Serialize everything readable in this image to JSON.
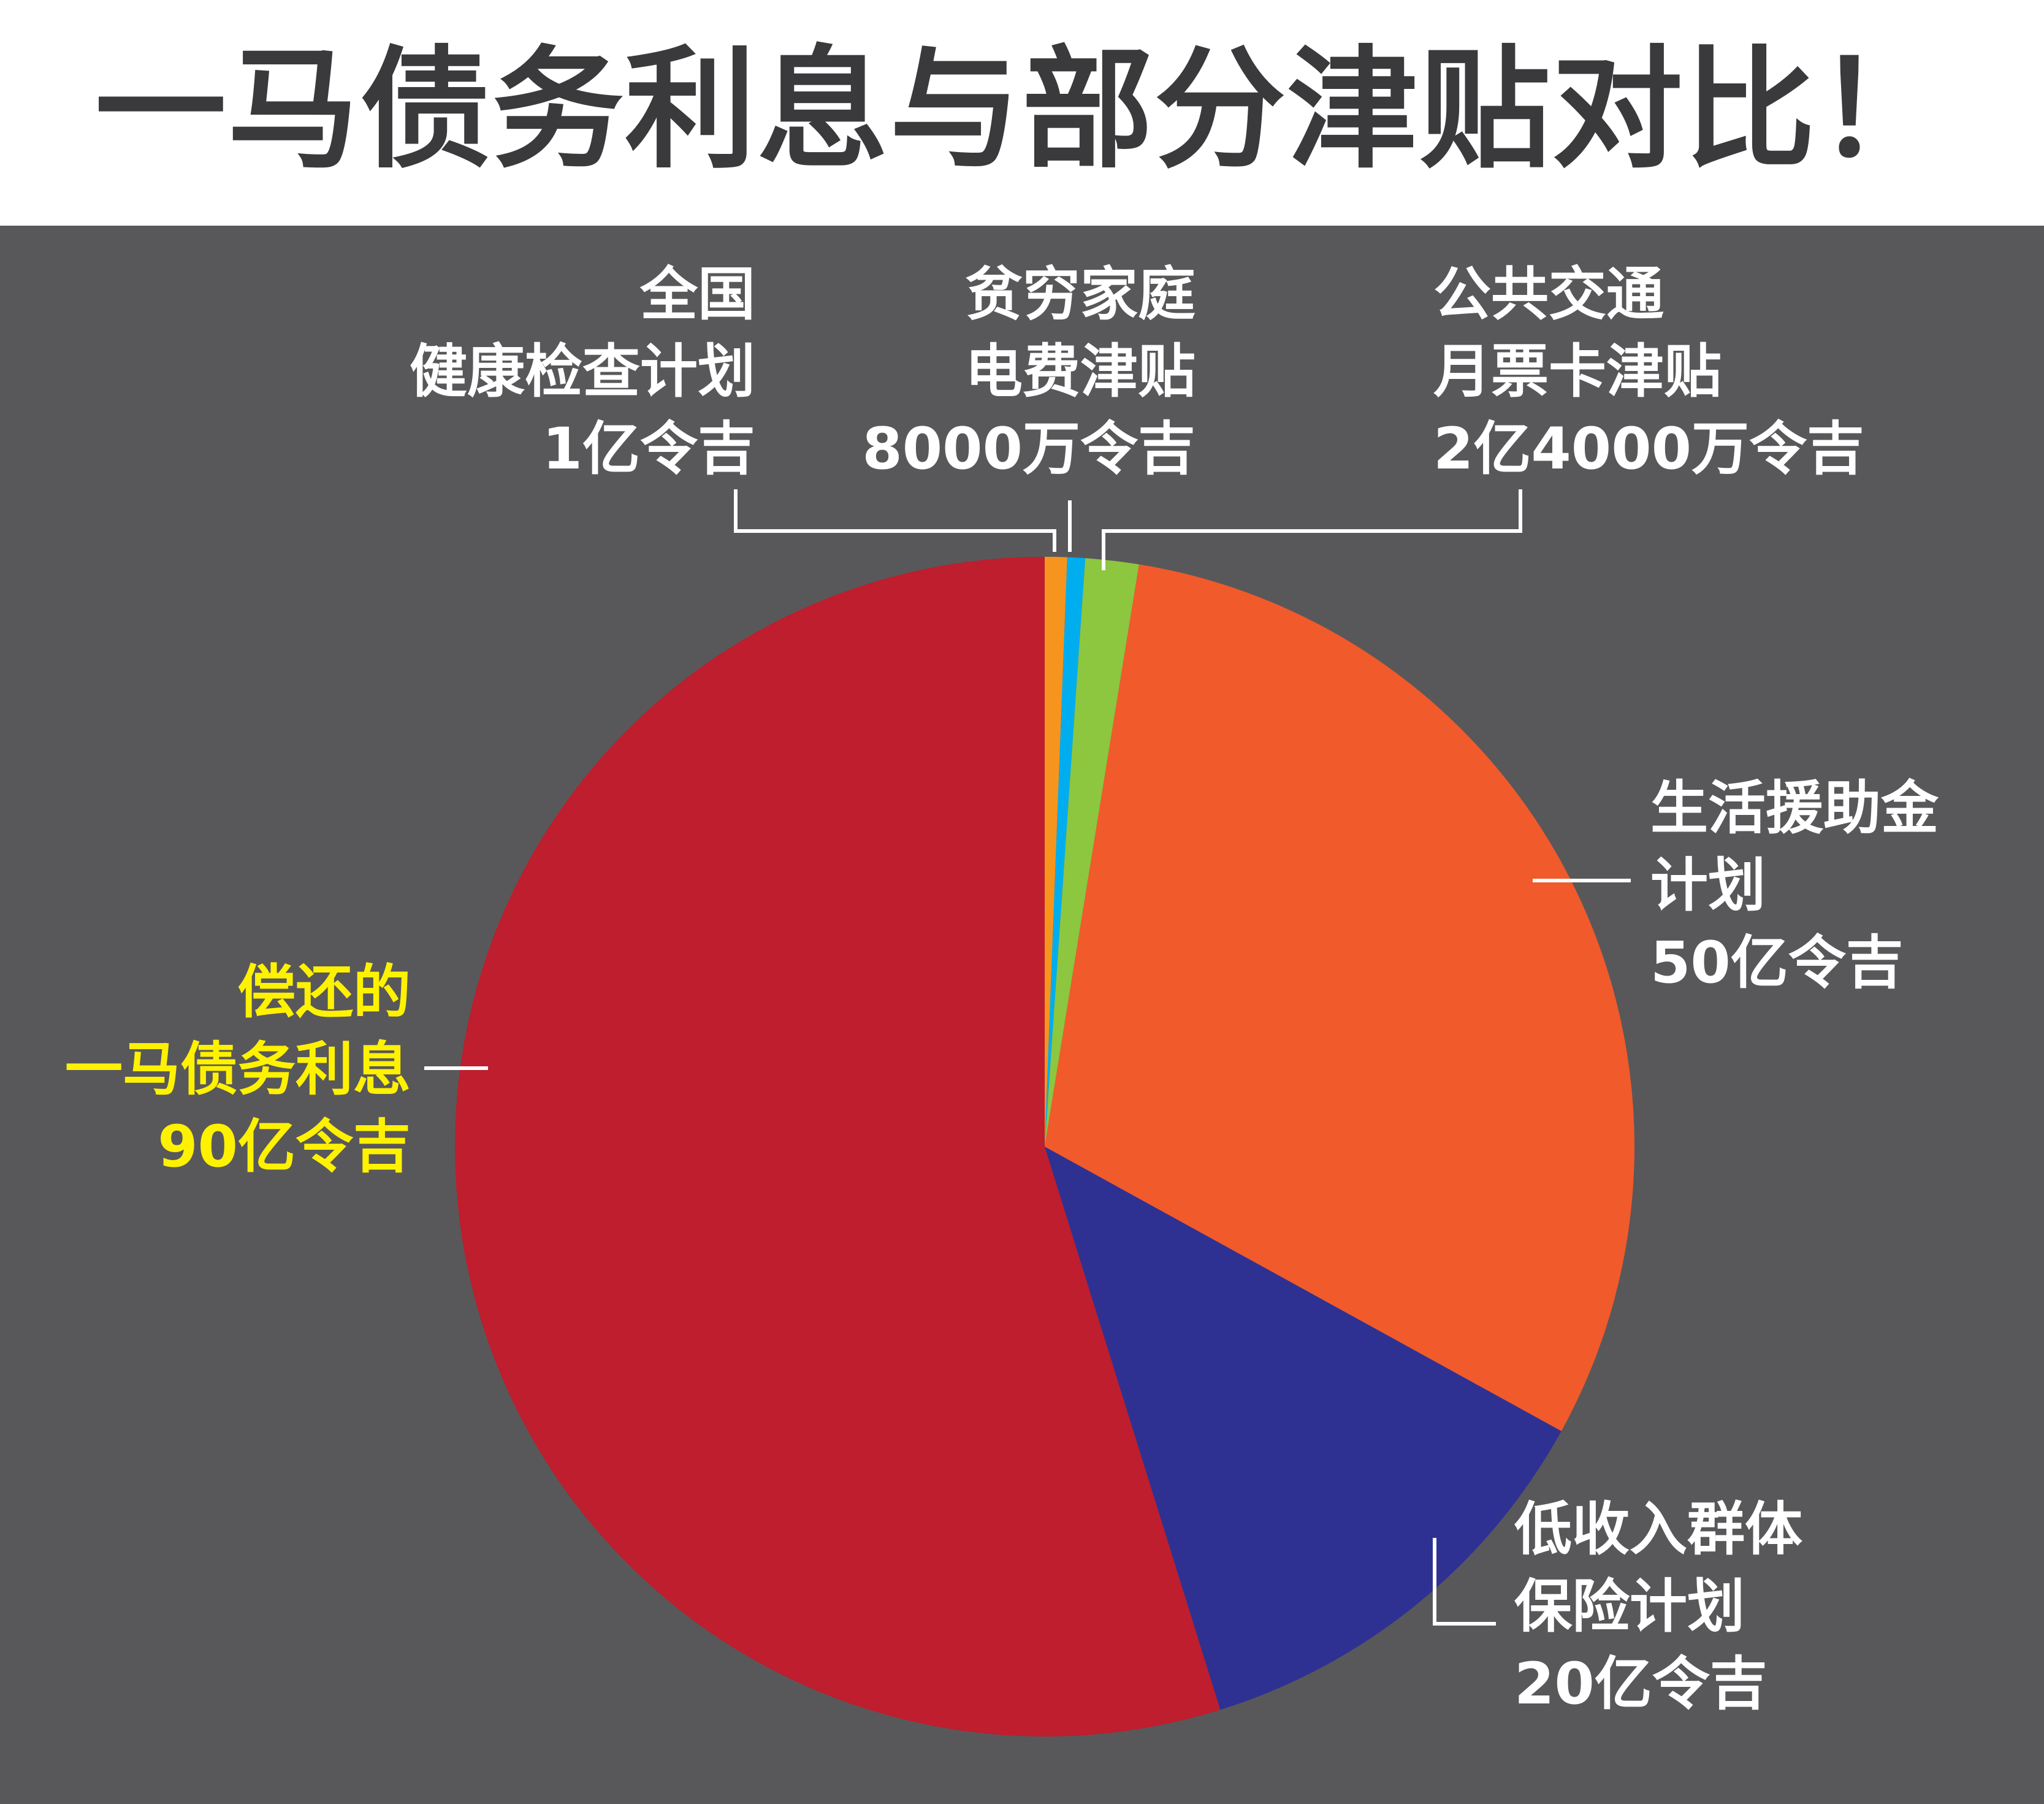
{
  "title": "一马债务利息与部分津贴对比！",
  "colors": {
    "panel_background": "#58585a",
    "title_color": "#3a3a3c",
    "label_color": "#ffffff",
    "highlight_label_color": "#fff200",
    "leader_line_color": "#ffffff"
  },
  "chart_data": {
    "type": "pie",
    "title": "一马债务利息与部分津贴对比！",
    "unit": "令吉",
    "slices": [
      {
        "key": "health",
        "label_lines": [
          "全国",
          "健康检查计划"
        ],
        "value_text": "1亿令吉",
        "value": 100000000,
        "color": "#f7941d"
      },
      {
        "key": "electricity",
        "label_lines": [
          "贫穷家庭",
          "电费津贴"
        ],
        "value_text": "8000万令吉",
        "value": 80000000,
        "color": "#00aeef"
      },
      {
        "key": "transport",
        "label_lines": [
          "公共交通",
          "月票卡津贴"
        ],
        "value_text": "2亿4000万令吉",
        "value": 240000000,
        "color": "#8dc63f"
      },
      {
        "key": "living_aid",
        "label_lines": [
          "生活援助金",
          "计划"
        ],
        "value_text": "50亿令吉",
        "value": 5000000000,
        "color": "#f15a2b"
      },
      {
        "key": "insurance",
        "label_lines": [
          "低收入群体",
          "保险计划"
        ],
        "value_text": "20亿令吉",
        "value": 2000000000,
        "color": "#2e3192"
      },
      {
        "key": "debt_interest",
        "label_lines": [
          "偿还的",
          "一马债务利息"
        ],
        "value_text": "90亿令吉",
        "value": 9000000000,
        "color": "#be1e2d",
        "highlight": true
      }
    ]
  }
}
